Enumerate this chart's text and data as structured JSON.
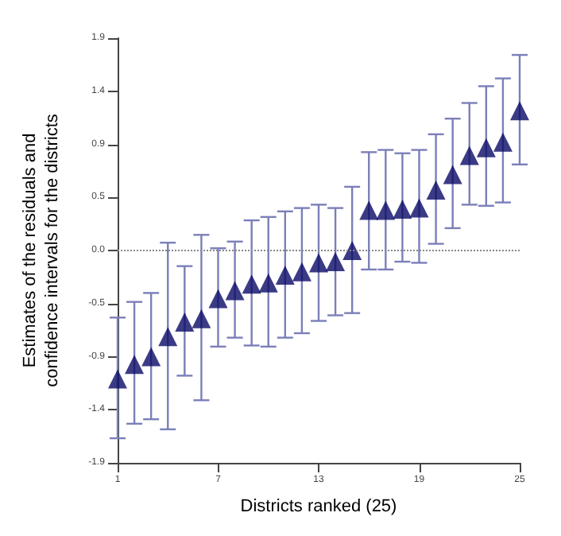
{
  "chart_data": {
    "type": "scatter",
    "xlabel": "Districts ranked (25)",
    "ylabel": "Estimates of the residuals and confidence intervals for the districts",
    "x": [
      1,
      2,
      3,
      4,
      5,
      6,
      7,
      8,
      9,
      10,
      11,
      12,
      13,
      14,
      15,
      16,
      17,
      18,
      19,
      20,
      21,
      22,
      23,
      24,
      25
    ],
    "values": [
      -1.15,
      -1.02,
      -0.95,
      -0.77,
      -0.64,
      -0.61,
      -0.43,
      -0.36,
      -0.3,
      -0.29,
      -0.22,
      -0.19,
      -0.11,
      -0.1,
      0.0,
      0.36,
      0.36,
      0.37,
      0.38,
      0.54,
      0.68,
      0.85,
      0.92,
      0.97,
      1.25
    ],
    "errors": [
      [
        -1.68,
        -0.6
      ],
      [
        -1.55,
        -0.46
      ],
      [
        -1.51,
        -0.38
      ],
      [
        -1.6,
        0.07
      ],
      [
        -1.12,
        -0.14
      ],
      [
        -1.34,
        0.14
      ],
      [
        -0.86,
        0.02
      ],
      [
        -0.78,
        0.08
      ],
      [
        -0.85,
        0.27
      ],
      [
        -0.86,
        0.3
      ],
      [
        -0.78,
        0.35
      ],
      [
        -0.74,
        0.38
      ],
      [
        -0.63,
        0.41
      ],
      [
        -0.58,
        0.38
      ],
      [
        -0.56,
        0.57
      ],
      [
        -0.17,
        0.88
      ],
      [
        -0.17,
        0.9
      ],
      [
        -0.1,
        0.87
      ],
      [
        -0.11,
        0.9
      ],
      [
        0.06,
        1.04
      ],
      [
        0.2,
        1.18
      ],
      [
        0.41,
        1.32
      ],
      [
        0.4,
        1.47
      ],
      [
        0.43,
        1.54
      ],
      [
        0.77,
        1.75
      ]
    ],
    "color": "#0a0a66",
    "marker": "triangle",
    "xlim": [
      1,
      25
    ],
    "xticks": [
      1,
      7,
      13,
      19,
      25
    ],
    "ylim": [
      -1.9,
      1.9
    ],
    "yticks": [
      -1.9,
      {
        "value": -1.425,
        "label": "-1.4"
      },
      {
        "value": -0.95,
        "label": "-0.9"
      },
      {
        "value": -0.475,
        "label": "-0.5"
      },
      {
        "value": 0,
        "label": "0.0"
      },
      {
        "value": 0.475,
        "label": "0.5"
      },
      {
        "value": 0.95,
        "label": "0.9"
      },
      {
        "value": 1.425,
        "label": "1.4"
      },
      1.9
    ],
    "ref_lines": [
      {
        "axis": "y",
        "value": 0,
        "color": "#888888",
        "line_style": "dotted"
      }
    ],
    "grid": false
  }
}
